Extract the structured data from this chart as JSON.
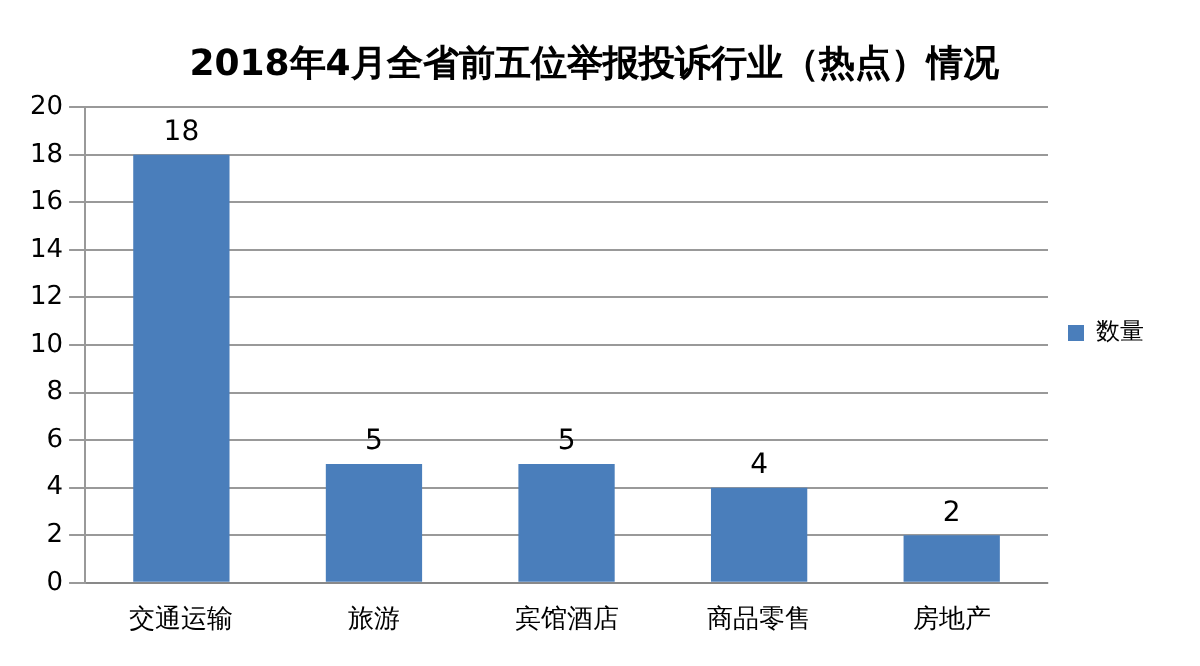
{
  "chart_data": {
    "type": "bar",
    "title": "2018年4月全省前五位举报投诉行业（热点）情况",
    "categories": [
      "交通运输",
      "旅游",
      "宾馆酒店",
      "商品零售",
      "房地产"
    ],
    "series": [
      {
        "name": "数量",
        "color": "#4a7ebb",
        "values": [
          18,
          5,
          5,
          4,
          2
        ]
      }
    ],
    "ylim": [
      0,
      20
    ],
    "yticks": [
      0,
      2,
      4,
      6,
      8,
      10,
      12,
      14,
      16,
      18,
      20
    ],
    "grid": "y",
    "legend": "right",
    "data_labels": true
  }
}
